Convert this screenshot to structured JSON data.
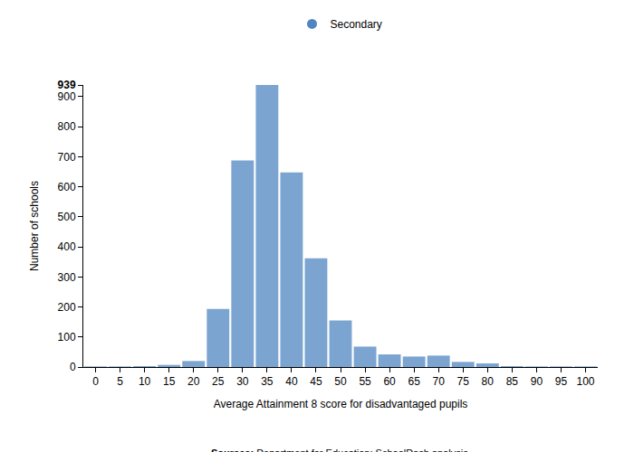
{
  "chart_data": {
    "type": "bar",
    "x_label": "Average Attainment 8 score for disadvantaged pupils",
    "y_label": "Number of schools",
    "source": "Sources: Department for Education; SchoolDash analysis.",
    "categories": [
      "0",
      "5",
      "10",
      "15",
      "20",
      "25",
      "30",
      "35",
      "40",
      "45",
      "50",
      "55",
      "60",
      "65",
      "70",
      "75",
      "80",
      "85",
      "90",
      "95",
      "100"
    ],
    "series": [
      {
        "name": "Secondary",
        "color": "#4f86c1",
        "values": [
          2,
          2,
          3,
          7,
          20,
          193,
          688,
          939,
          648,
          362,
          155,
          68,
          42,
          35,
          38,
          17,
          12,
          3,
          2,
          2,
          2
        ]
      }
    ],
    "ylim": [
      0,
      939
    ],
    "yticks": [
      0,
      100,
      200,
      300,
      400,
      500,
      600,
      700,
      800,
      900,
      939
    ],
    "grid": false,
    "legend": "top"
  }
}
